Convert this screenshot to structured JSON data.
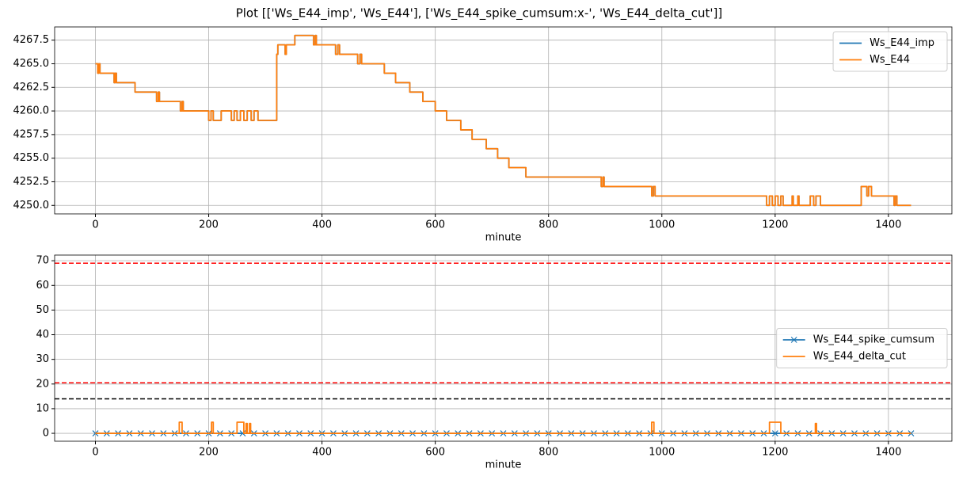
{
  "title": "Plot [['Ws_E44_imp', 'Ws_E44'], ['Ws_E44_spike_cumsum:x-', 'Ws_E44_delta_cut']]",
  "chart_data": [
    {
      "type": "line",
      "xlabel": "minute",
      "xlim": [
        -72,
        1512
      ],
      "xticks": [
        0,
        200,
        400,
        600,
        800,
        1000,
        1200,
        1400
      ],
      "ylim": [
        4249.1,
        4268.9
      ],
      "yticks": [
        {
          "value": 4250,
          "label": "4250.0"
        },
        4252.5,
        {
          "value": 4255,
          "label": "4255.0"
        },
        4257.5,
        {
          "value": 4260,
          "label": "4260.0"
        },
        4262.5,
        {
          "value": 4265,
          "label": "4265.0"
        },
        4267.5
      ],
      "grid": true,
      "legend": "upper right",
      "x": [
        0,
        4,
        4,
        6,
        6,
        8,
        8,
        33,
        33,
        35,
        35,
        37,
        37,
        70,
        70,
        108,
        108,
        111,
        111,
        113,
        113,
        150,
        150,
        153,
        153,
        155,
        155,
        200,
        200,
        204,
        204,
        208,
        208,
        222,
        222,
        240,
        240,
        245,
        245,
        250,
        250,
        256,
        256,
        262,
        262,
        268,
        268,
        275,
        275,
        280,
        280,
        287,
        287,
        320,
        320,
        322,
        322,
        335,
        335,
        337,
        337,
        352,
        352,
        385,
        385,
        388,
        388,
        390,
        390,
        424,
        424,
        428,
        428,
        431,
        431,
        463,
        463,
        467,
        467,
        470,
        470,
        510,
        510,
        530,
        530,
        555,
        555,
        578,
        578,
        600,
        600,
        620,
        620,
        645,
        645,
        665,
        665,
        690,
        690,
        710,
        710,
        730,
        730,
        760,
        760,
        893,
        893,
        896,
        896,
        898,
        898,
        982,
        982,
        985,
        985,
        988,
        988,
        1185,
        1185,
        1190,
        1190,
        1195,
        1195,
        1200,
        1200,
        1205,
        1205,
        1210,
        1210,
        1214,
        1214,
        1230,
        1230,
        1232,
        1232,
        1240,
        1240,
        1242,
        1242,
        1262,
        1262,
        1268,
        1268,
        1272,
        1272,
        1280,
        1280,
        1352,
        1352,
        1362,
        1362,
        1365,
        1365,
        1370,
        1370,
        1410,
        1410,
        1412,
        1412,
        1415,
        1415,
        1440
      ],
      "series": [
        {
          "name": "Ws_E44_imp",
          "color": "#1f77b4",
          "values": [
            4265,
            4265,
            4264,
            4264,
            4265,
            4265,
            4264,
            4264,
            4263,
            4263,
            4264,
            4264,
            4263,
            4263,
            4262,
            4262,
            4261,
            4261,
            4262,
            4262,
            4261,
            4261,
            4260,
            4260,
            4261,
            4261,
            4260,
            4260,
            4259,
            4259,
            4260,
            4260,
            4259,
            4259,
            4260,
            4260,
            4259,
            4259,
            4260,
            4260,
            4259,
            4259,
            4260,
            4260,
            4259,
            4259,
            4260,
            4260,
            4259,
            4259,
            4260,
            4260,
            4259,
            4259,
            4266,
            4266,
            4267,
            4267,
            4266,
            4266,
            4267,
            4267,
            4268,
            4268,
            4267,
            4267,
            4268,
            4268,
            4267,
            4267,
            4266,
            4266,
            4267,
            4267,
            4266,
            4266,
            4265,
            4265,
            4266,
            4266,
            4265,
            4265,
            4264,
            4264,
            4263,
            4263,
            4262,
            4262,
            4261,
            4261,
            4260,
            4260,
            4259,
            4259,
            4258,
            4258,
            4257,
            4257,
            4256,
            4256,
            4255,
            4255,
            4254,
            4254,
            4253,
            4253,
            4252,
            4252,
            4253,
            4253,
            4252,
            4252,
            4251,
            4251,
            4252,
            4252,
            4251,
            4251,
            4250,
            4250,
            4251,
            4251,
            4250,
            4250,
            4251,
            4251,
            4250,
            4250,
            4251,
            4251,
            4250,
            4250,
            4251,
            4251,
            4250,
            4250,
            4251,
            4251,
            4250,
            4250,
            4251,
            4251,
            4250,
            4250,
            4251,
            4251,
            4250,
            4250,
            4252,
            4252,
            4251,
            4251,
            4252,
            4252,
            4251,
            4251,
            4250,
            4250,
            4251,
            4251,
            4250,
            4250
          ]
        },
        {
          "name": "Ws_E44",
          "color": "#ff7f0e",
          "values": [
            4265,
            4265,
            4264,
            4264,
            4265,
            4265,
            4264,
            4264,
            4263,
            4263,
            4264,
            4264,
            4263,
            4263,
            4262,
            4262,
            4261,
            4261,
            4262,
            4262,
            4261,
            4261,
            4260,
            4260,
            4261,
            4261,
            4260,
            4260,
            4259,
            4259,
            4260,
            4260,
            4259,
            4259,
            4260,
            4260,
            4259,
            4259,
            4260,
            4260,
            4259,
            4259,
            4260,
            4260,
            4259,
            4259,
            4260,
            4260,
            4259,
            4259,
            4260,
            4260,
            4259,
            4259,
            4266,
            4266,
            4267,
            4267,
            4266,
            4266,
            4267,
            4267,
            4268,
            4268,
            4267,
            4267,
            4268,
            4268,
            4267,
            4267,
            4266,
            4266,
            4267,
            4267,
            4266,
            4266,
            4265,
            4265,
            4266,
            4266,
            4265,
            4265,
            4264,
            4264,
            4263,
            4263,
            4262,
            4262,
            4261,
            4261,
            4260,
            4260,
            4259,
            4259,
            4258,
            4258,
            4257,
            4257,
            4256,
            4256,
            4255,
            4255,
            4254,
            4254,
            4253,
            4253,
            4252,
            4252,
            4253,
            4253,
            4252,
            4252,
            4251,
            4251,
            4252,
            4252,
            4251,
            4251,
            4250,
            4250,
            4251,
            4251,
            4250,
            4250,
            4251,
            4251,
            4250,
            4250,
            4251,
            4251,
            4250,
            4250,
            4251,
            4251,
            4250,
            4250,
            4251,
            4251,
            4250,
            4250,
            4251,
            4251,
            4250,
            4250,
            4251,
            4251,
            4250,
            4250,
            4252,
            4252,
            4251,
            4251,
            4252,
            4252,
            4251,
            4251,
            4250,
            4250,
            4251,
            4251,
            4250,
            4250
          ]
        }
      ]
    },
    {
      "type": "line",
      "xlabel": "minute",
      "xlim": [
        -72,
        1512
      ],
      "xticks": [
        0,
        200,
        400,
        600,
        800,
        1000,
        1200,
        1400
      ],
      "ylim": [
        -3.2,
        72.3
      ],
      "yticks": [
        0,
        10,
        20,
        30,
        40,
        50,
        60,
        70
      ],
      "grid": true,
      "legend": "center right",
      "hlines": [
        {
          "y": 69,
          "color": "#ff0000"
        },
        {
          "y": 20.5,
          "color": "#ff0000"
        },
        {
          "y": 14,
          "color": "#000000"
        }
      ],
      "series": [
        {
          "name": "Ws_E44_spike_cumsum",
          "color": "#1f77b4",
          "marker": "x",
          "x": [
            0,
            20,
            40,
            60,
            80,
            100,
            120,
            140,
            160,
            180,
            200,
            220,
            240,
            260,
            280,
            300,
            320,
            340,
            360,
            380,
            400,
            420,
            440,
            460,
            480,
            500,
            520,
            540,
            560,
            580,
            600,
            620,
            640,
            660,
            680,
            700,
            720,
            740,
            760,
            780,
            800,
            820,
            840,
            860,
            880,
            900,
            920,
            940,
            960,
            980,
            1000,
            1020,
            1040,
            1060,
            1080,
            1100,
            1120,
            1140,
            1160,
            1180,
            1200,
            1220,
            1240,
            1260,
            1280,
            1300,
            1320,
            1340,
            1360,
            1380,
            1400,
            1420,
            1440
          ],
          "values": [
            0,
            0,
            0,
            0,
            0,
            0,
            0,
            0,
            0,
            0,
            0,
            0,
            0,
            0,
            0,
            0,
            0,
            0,
            0,
            0,
            0,
            0,
            0,
            0,
            0,
            0,
            0,
            0,
            0,
            0,
            0,
            0,
            0,
            0,
            0,
            0,
            0,
            0,
            0,
            0,
            0,
            0,
            0,
            0,
            0,
            0,
            0,
            0,
            0,
            0,
            0,
            0,
            0,
            0,
            0,
            0,
            0,
            0,
            0,
            0,
            0,
            0,
            0,
            0,
            0,
            0,
            0,
            0,
            0,
            0,
            0,
            0,
            0
          ]
        },
        {
          "name": "Ws_E44_delta_cut",
          "color": "#ff7f0e",
          "x": [
            0,
            148,
            148,
            153,
            153,
            205,
            205,
            208,
            208,
            250,
            250,
            262,
            262,
            266,
            266,
            268,
            268,
            272,
            272,
            274,
            274,
            982,
            982,
            986,
            986,
            1190,
            1190,
            1210,
            1210,
            1271,
            1271,
            1273,
            1273,
            1440
          ],
          "values": [
            0,
            0,
            4.5,
            4.5,
            0,
            0,
            4.5,
            4.5,
            0,
            0,
            4.5,
            4.5,
            0,
            0,
            4,
            4,
            0,
            0,
            4,
            4,
            0,
            0,
            4.5,
            4.5,
            0,
            0,
            4.5,
            4.5,
            0,
            0,
            4,
            4,
            0,
            0
          ]
        }
      ]
    }
  ]
}
